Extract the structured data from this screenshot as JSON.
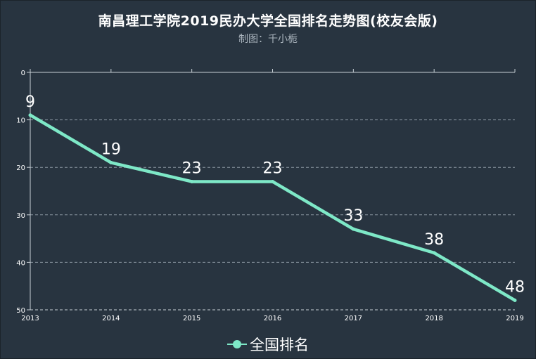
{
  "chart_data": {
    "type": "line",
    "title": "南昌理工学院2019民办大学全国排名走势图(校友会版)",
    "subtitle": "制图：千小栀",
    "categories": [
      "2013",
      "2014",
      "2015",
      "2016",
      "2017",
      "2018",
      "2019"
    ],
    "series": [
      {
        "name": "全国排名",
        "values": [
          9,
          19,
          23,
          23,
          33,
          38,
          48
        ],
        "color": "#7ee8c7"
      }
    ],
    "ylim": [
      0,
      50
    ],
    "y_inverted": true,
    "yticks": [
      "0",
      "10",
      "20",
      "30",
      "40",
      "50"
    ],
    "grid": true,
    "legend": "bottom-center"
  }
}
